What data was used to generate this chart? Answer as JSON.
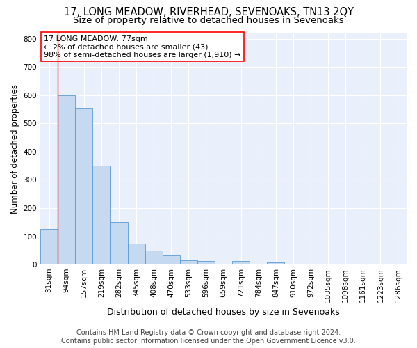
{
  "title": "17, LONG MEADOW, RIVERHEAD, SEVENOAKS, TN13 2QY",
  "subtitle": "Size of property relative to detached houses in Sevenoaks",
  "xlabel": "Distribution of detached houses by size in Sevenoaks",
  "ylabel": "Number of detached properties",
  "bar_color": "#c5d9f0",
  "bar_edge_color": "#5b9bd5",
  "plot_bg_color": "#eaf0fb",
  "categories": [
    "31sqm",
    "94sqm",
    "157sqm",
    "219sqm",
    "282sqm",
    "345sqm",
    "408sqm",
    "470sqm",
    "533sqm",
    "596sqm",
    "659sqm",
    "721sqm",
    "784sqm",
    "847sqm",
    "910sqm",
    "972sqm",
    "1035sqm",
    "1098sqm",
    "1161sqm",
    "1223sqm",
    "1286sqm"
  ],
  "values": [
    125,
    600,
    555,
    350,
    150,
    75,
    50,
    33,
    14,
    12,
    0,
    12,
    0,
    8,
    0,
    0,
    0,
    0,
    0,
    0,
    0
  ],
  "ylim": [
    0,
    820
  ],
  "yticks": [
    0,
    100,
    200,
    300,
    400,
    500,
    600,
    700,
    800
  ],
  "annotation_line1": "17 LONG MEADOW: 77sqm",
  "annotation_line2": "← 2% of detached houses are smaller (43)",
  "annotation_line3": "98% of semi-detached houses are larger (1,910) →",
  "vline_x": 0.5,
  "footer_line1": "Contains HM Land Registry data © Crown copyright and database right 2024.",
  "footer_line2": "Contains public sector information licensed under the Open Government Licence v3.0.",
  "title_fontsize": 10.5,
  "subtitle_fontsize": 9.5,
  "ylabel_fontsize": 8.5,
  "xlabel_fontsize": 9,
  "annotation_fontsize": 8,
  "footer_fontsize": 7,
  "tick_fontsize": 7.5
}
